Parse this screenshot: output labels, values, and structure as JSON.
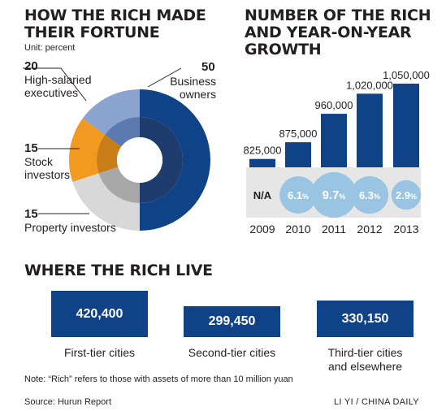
{
  "colors": {
    "navy": "#0f4287",
    "navy_inner": "#1e3d6e",
    "orange": "#f19a1f",
    "orange_inner": "#c87d16",
    "lightblue": "#8aa3cf",
    "lightblue_inner": "#5c79b0",
    "gray": "#d8d8d8",
    "gray_inner": "#a8a8a8",
    "band": "#e6e6e6",
    "bubble": "#99c4e2"
  },
  "pie": {
    "title_line1": "HOW THE RICH MADE",
    "title_line2": "THEIR FORTUNE",
    "unit": "Unit: percent",
    "labels": {
      "business": {
        "value": "50",
        "line1": "Business",
        "line2": "owners"
      },
      "executives": {
        "value": "20",
        "line1": "High-salaried",
        "line2": "executives"
      },
      "stock": {
        "value": "15",
        "line1": "Stock",
        "line2": "investors"
      },
      "property": {
        "value": "15",
        "line1": "Property investors"
      }
    }
  },
  "bars": {
    "title_line1": "NUMBER OF THE RICH",
    "title_line2": "AND YEAR-ON-YEAR",
    "title_line3": "GROWTH",
    "na_label": "N/A"
  },
  "cities": {
    "title": "WHERE THE RICH LIVE",
    "items": [
      {
        "value": "420,400",
        "label1": "First-tier cities",
        "label2": ""
      },
      {
        "value": "299,450",
        "label1": "Second-tier cities",
        "label2": ""
      },
      {
        "value": "330,150",
        "label1": "Third-tier cities",
        "label2": "and elsewhere"
      }
    ]
  },
  "note": "Note: “Rich” refers to those with assets of more than 10 million yuan",
  "source": "Source: Hurun Report",
  "credit": "LI YI / CHINA DAILY",
  "chart_data": [
    {
      "type": "pie",
      "title": "HOW THE RICH MADE THEIR FORTUNE",
      "unit": "percent",
      "categories": [
        "Business owners",
        "High-salaried executives",
        "Stock investors",
        "Property investors"
      ],
      "values": [
        50,
        20,
        15,
        15
      ],
      "colors": [
        "#0f4287",
        "#d8d8d8",
        "#f19a1f",
        "#8aa3cf"
      ]
    },
    {
      "type": "bar",
      "title": "NUMBER OF THE RICH AND YEAR-ON-YEAR GROWTH",
      "categories": [
        "2009",
        "2010",
        "2011",
        "2012",
        "2013"
      ],
      "values": [
        825000,
        875000,
        960000,
        1020000,
        1050000
      ],
      "value_labels": [
        "825,000",
        "875,000",
        "960,000",
        "1,020,000",
        "1,050,000"
      ],
      "growth_labels": [
        "",
        "6.1",
        "9.7",
        "6.3",
        "2.9"
      ],
      "ylim": [
        800000,
        1050000
      ],
      "grid": false
    },
    {
      "type": "bar",
      "title": "WHERE THE RICH LIVE",
      "categories": [
        "First-tier cities",
        "Second-tier cities",
        "Third-tier cities and elsewhere"
      ],
      "values": [
        420400,
        299450,
        330150
      ]
    }
  ]
}
